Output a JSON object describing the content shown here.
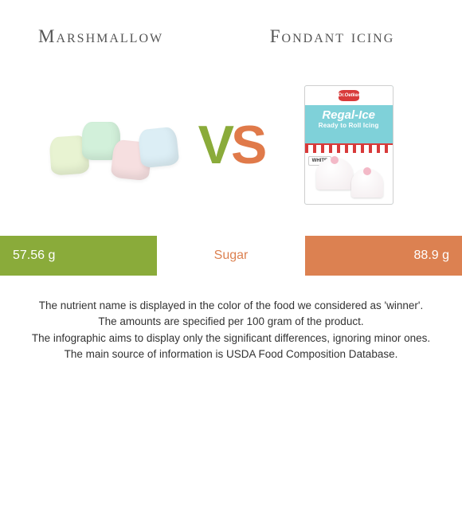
{
  "titles": {
    "left": "Marshmallow",
    "right": "Fondant icing"
  },
  "vs": {
    "v": "V",
    "s": "S"
  },
  "product_box": {
    "logo": "Dr.Oetker",
    "brand": "Regal-Ice",
    "subtitle": "Ready to Roll Icing",
    "variant": "WHITE"
  },
  "comparison": {
    "nutrient_label": "Sugar",
    "nutrient_label_color": "#dc8151",
    "left": {
      "value": "57.56 g",
      "color": "#8aab3a",
      "width_pct": 34
    },
    "right": {
      "value": "88.9 g",
      "color": "#dc8151",
      "width_pct": 34
    }
  },
  "notes": {
    "l1": "The nutrient name is displayed in the color of the food we considered as 'winner'.",
    "l2": "The amounts are specified per 100 gram of the product.",
    "l3": "The infographic aims to display only the significant differences, ignoring minor ones.",
    "l4": "The main source of information is USDA Food Composition Database."
  }
}
